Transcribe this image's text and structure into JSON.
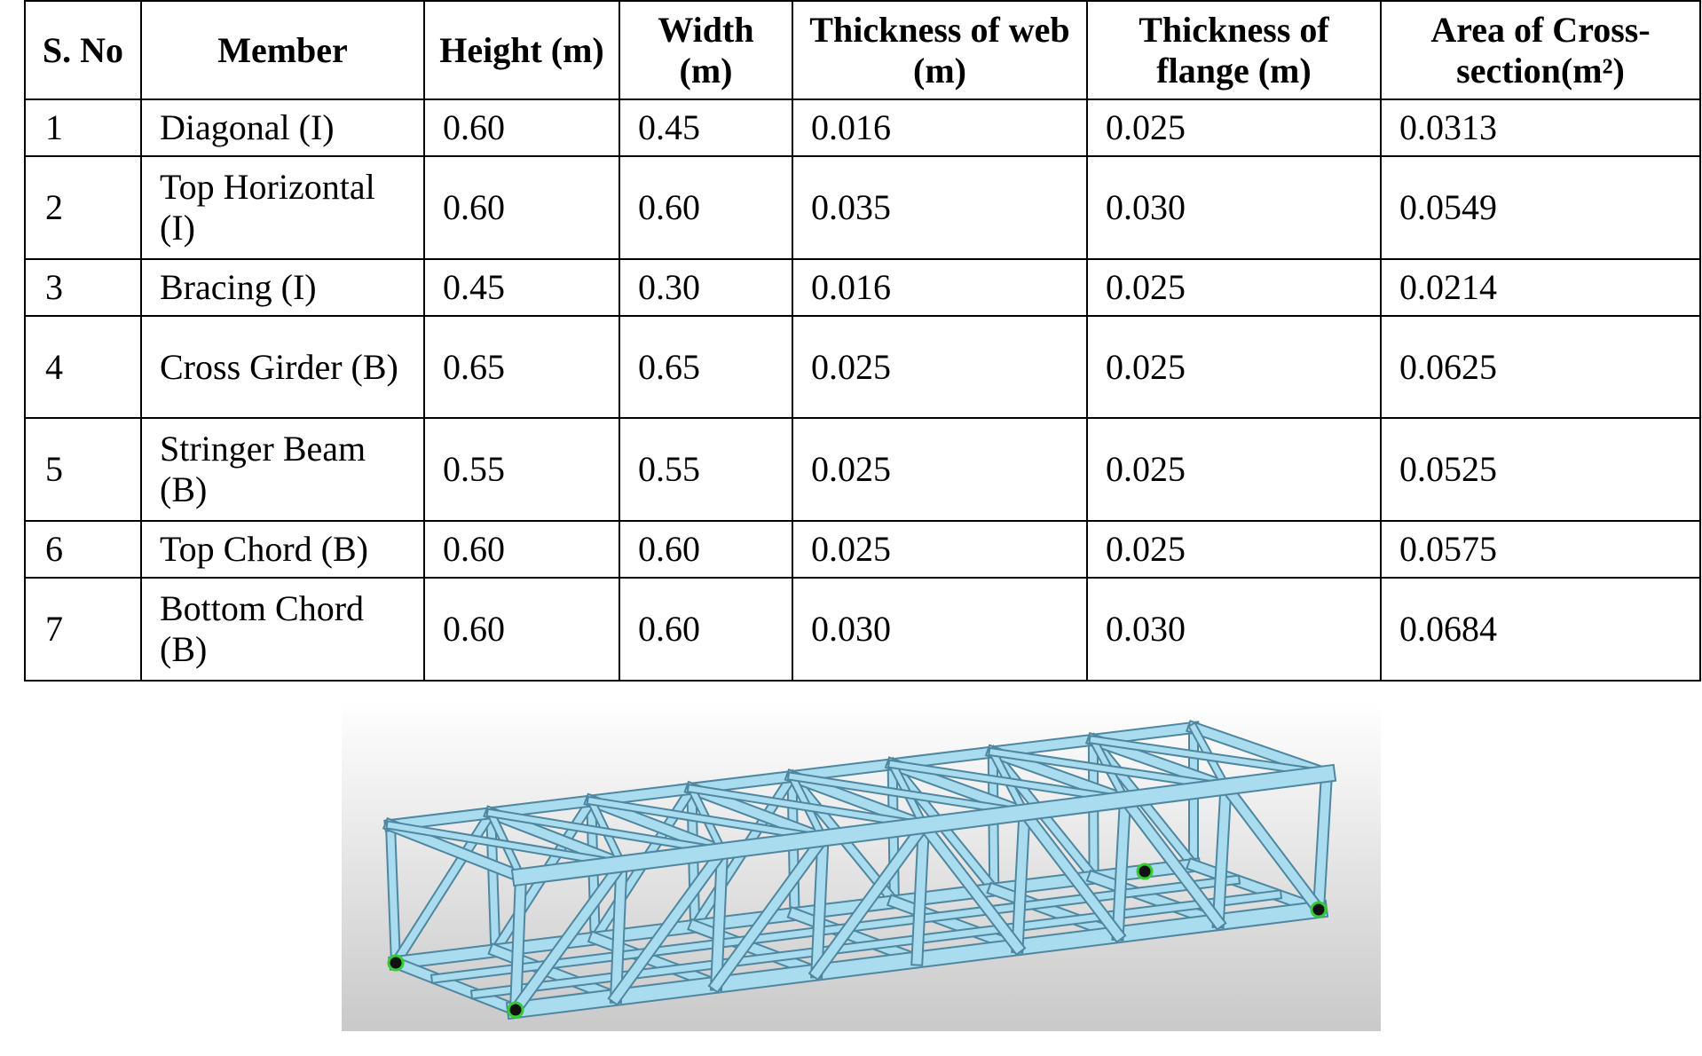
{
  "table": {
    "header": [
      "S. No",
      "Member",
      "Height (m)",
      "Width (m)",
      "Thickness of web (m)",
      "Thickness of flange (m)",
      "Area of Cross-section(m²)"
    ],
    "rows": [
      [
        "1",
        "Diagonal (I)",
        "0.60",
        "0.45",
        "0.016",
        "0.025",
        "0.0313"
      ],
      [
        "2",
        "Top Horizontal (I)",
        "0.60",
        "0.60",
        "0.035",
        "0.030",
        "0.0549"
      ],
      [
        "3",
        "Bracing (I)",
        "0.45",
        "0.30",
        "0.016",
        "0.025",
        "0.0214"
      ],
      [
        "4",
        "Cross Girder (B)",
        "0.65",
        "0.65",
        "0.025",
        "0.025",
        "0.0625"
      ],
      [
        "5",
        "Stringer Beam (B)",
        "0.55",
        "0.55",
        "0.025",
        "0.025",
        "0.0525"
      ],
      [
        "6",
        "Top Chord (B)",
        "0.60",
        "0.60",
        "0.025",
        "0.025",
        "0.0575"
      ],
      [
        "7",
        "Bottom Chord (B)",
        "0.60",
        "0.60",
        "0.030",
        "0.030",
        "0.0684"
      ]
    ]
  }
}
